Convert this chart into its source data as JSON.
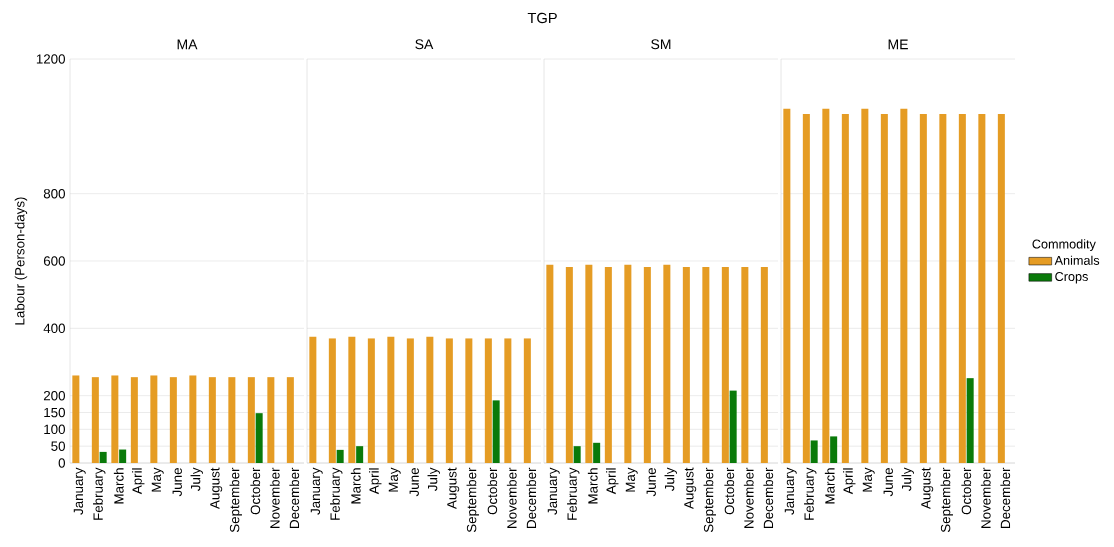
{
  "chart_data": [
    {
      "type": "bar",
      "title": "MA",
      "ylabel": "Labour (Person-days)",
      "annotations": [
        "TGP"
      ],
      "categories": [
        "January",
        "February",
        "March",
        "April",
        "May",
        "June",
        "July",
        "August",
        "September",
        "October",
        "November",
        "December"
      ],
      "series": [
        {
          "color": "#e59c24",
          "values": [
            260,
            255,
            260,
            255,
            260,
            255,
            260,
            255,
            255,
            255,
            255,
            255
          ]
        },
        {
          "color": "#0a7a0a",
          "values": [
            null,
            33,
            40,
            null,
            null,
            null,
            null,
            null,
            null,
            148,
            null,
            null
          ]
        }
      ],
      "ylim": [
        0,
        1200
      ],
      "yticks": [
        0,
        50,
        100,
        150,
        200,
        400,
        600,
        800,
        1200
      ],
      "grid": "y"
    },
    {
      "type": "bar",
      "title": "SA",
      "categories": [
        "January",
        "February",
        "March",
        "April",
        "May",
        "June",
        "July",
        "August",
        "September",
        "October",
        "November",
        "December"
      ],
      "series": [
        {
          "color": "#e59c24",
          "values": [
            375,
            370,
            375,
            370,
            375,
            370,
            375,
            370,
            370,
            370,
            370,
            370
          ]
        },
        {
          "color": "#0a7a0a",
          "values": [
            null,
            39,
            50,
            null,
            null,
            null,
            null,
            null,
            null,
            186,
            null,
            null
          ]
        }
      ],
      "ylim": [
        0,
        1200
      ],
      "yticks": [
        0,
        50,
        100,
        150,
        200,
        400,
        600,
        800,
        1200
      ],
      "grid": "y",
      "tick_labels": "x"
    },
    {
      "type": "bar",
      "title": "SM",
      "categories": [
        "January",
        "February",
        "March",
        "April",
        "May",
        "June",
        "July",
        "August",
        "September",
        "October",
        "November",
        "December"
      ],
      "series": [
        {
          "color": "#e59c24",
          "values": [
            589,
            582,
            589,
            582,
            589,
            582,
            589,
            582,
            582,
            582,
            582,
            582
          ]
        },
        {
          "color": "#0a7a0a",
          "values": [
            null,
            50,
            60,
            null,
            null,
            null,
            null,
            null,
            null,
            215,
            null,
            null
          ]
        }
      ],
      "ylim": [
        0,
        1200
      ],
      "yticks": [
        0,
        50,
        100,
        150,
        200,
        400,
        600,
        800,
        1200
      ],
      "grid": "y",
      "tick_labels": "x"
    },
    {
      "type": "bar",
      "title": "ME",
      "legend": "right",
      "legend_title": "Commodity",
      "categories": [
        "January",
        "February",
        "March",
        "April",
        "May",
        "June",
        "July",
        "August",
        "September",
        "October",
        "November",
        "December"
      ],
      "series": [
        {
          "name": "Animals",
          "color": "#e59c24",
          "values": [
            1052,
            1037,
            1052,
            1037,
            1052,
            1037,
            1052,
            1037,
            1037,
            1037,
            1037,
            1037
          ]
        },
        {
          "name": "Crops",
          "color": "#0a7a0a",
          "values": [
            null,
            67,
            79,
            null,
            null,
            null,
            null,
            null,
            null,
            252,
            null,
            null
          ]
        }
      ],
      "ylim": [
        0,
        1200
      ],
      "yticks": [
        0,
        50,
        100,
        150,
        200,
        400,
        600,
        800,
        1200
      ],
      "grid": "y",
      "tick_labels": "x"
    }
  ]
}
